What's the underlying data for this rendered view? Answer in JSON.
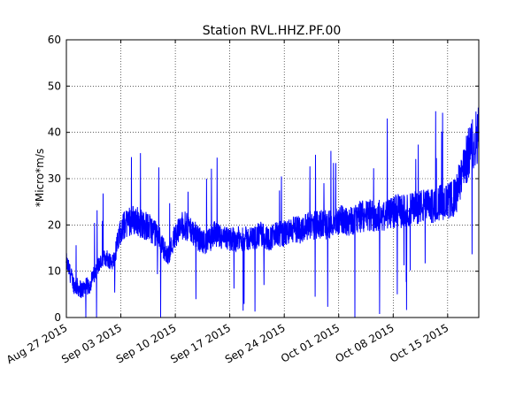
{
  "chart_data": {
    "type": "line",
    "title": "Station RVL.HHZ.PF.00",
    "xlabel": "",
    "ylabel": "*Micro*m/s",
    "ylim": [
      0,
      60
    ],
    "yticks": [
      0,
      10,
      20,
      30,
      40,
      50,
      60
    ],
    "xlim": [
      "2015-08-27",
      "2015-10-19"
    ],
    "xticks": [
      "Aug 27 2015",
      "Sep 03 2015",
      "Sep 10 2015",
      "Sep 17 2015",
      "Sep 24 2015",
      "Oct 01 2015",
      "Oct 08 2015",
      "Oct 15 2015"
    ],
    "grid": true,
    "line_color": "#0000ff",
    "series": [
      {
        "x": [
          "2015-08-27",
          "2015-08-28",
          "2015-08-29",
          "2015-08-30",
          "2015-08-31",
          "2015-09-01",
          "2015-09-02",
          "2015-09-03",
          "2015-09-04",
          "2015-09-05",
          "2015-09-06",
          "2015-09-07",
          "2015-09-08",
          "2015-09-09",
          "2015-09-10",
          "2015-09-11",
          "2015-09-12",
          "2015-09-13",
          "2015-09-14",
          "2015-09-15",
          "2015-09-16",
          "2015-09-17",
          "2015-09-18",
          "2015-09-19",
          "2015-09-20",
          "2015-09-21",
          "2015-09-22",
          "2015-09-23",
          "2015-09-24",
          "2015-09-25",
          "2015-09-26",
          "2015-09-27",
          "2015-09-28",
          "2015-09-29",
          "2015-09-30",
          "2015-10-01",
          "2015-10-02",
          "2015-10-03",
          "2015-10-04",
          "2015-10-05",
          "2015-10-06",
          "2015-10-07",
          "2015-10-08",
          "2015-10-09",
          "2015-10-10",
          "2015-10-11",
          "2015-10-12",
          "2015-10-13",
          "2015-10-14",
          "2015-10-15",
          "2015-10-16",
          "2015-10-17",
          "2015-10-18",
          "2015-10-19"
        ],
        "y": [
          12,
          7,
          6,
          7,
          11,
          13,
          12,
          19,
          21,
          21,
          20,
          19,
          17,
          13,
          18,
          20,
          19,
          17,
          16,
          18,
          17,
          17,
          17,
          17,
          17,
          18,
          17,
          18,
          18,
          19,
          19,
          20,
          20,
          20,
          20,
          21,
          21,
          21,
          22,
          22,
          22,
          22,
          23,
          23,
          23,
          24,
          24,
          24,
          25,
          25,
          26,
          32,
          37,
          40
        ]
      }
    ]
  }
}
